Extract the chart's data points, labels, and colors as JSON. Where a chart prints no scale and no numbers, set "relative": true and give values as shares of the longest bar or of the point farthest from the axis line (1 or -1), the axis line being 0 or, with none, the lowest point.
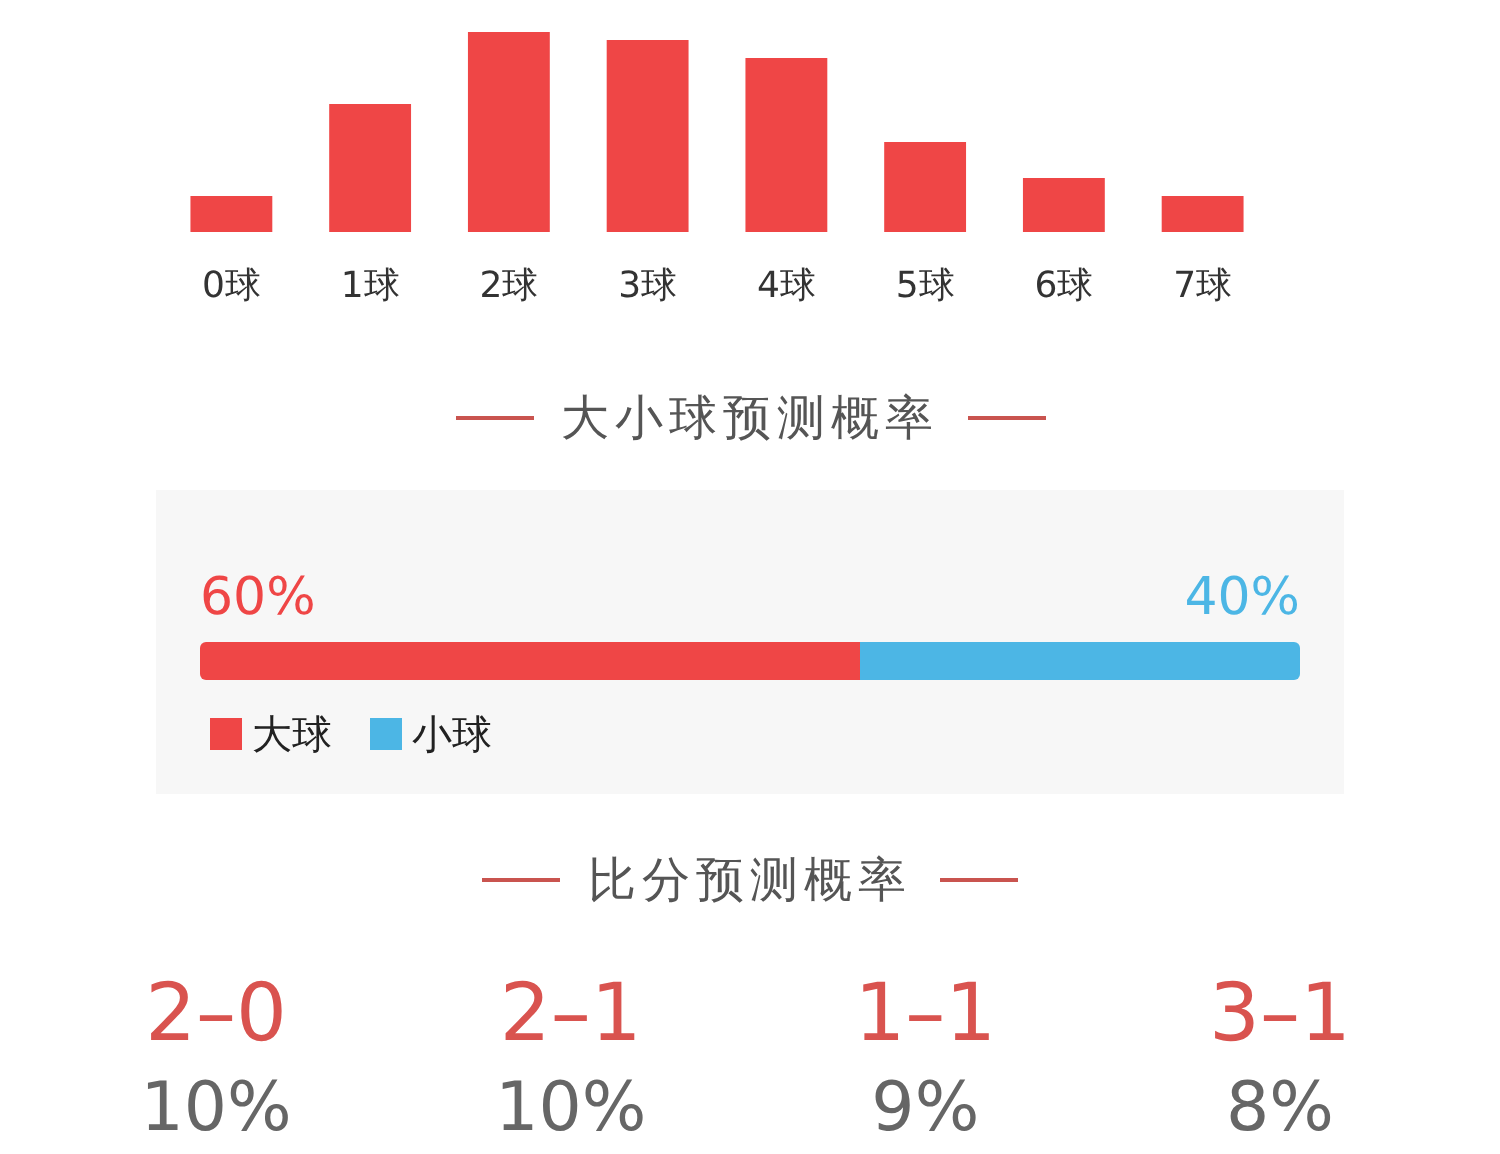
{
  "chart_data": [
    {
      "type": "bar",
      "categories": [
        "0球",
        "1球",
        "2球",
        "3球",
        "4球",
        "5球",
        "6球",
        "7球"
      ],
      "values": [
        0.18,
        0.64,
        1,
        0.96,
        0.87,
        0.45,
        0.27,
        0.18
      ],
      "color": "#ef4646",
      "relative": true
    },
    {
      "type": "bar",
      "title": "大小球预测概率",
      "orientation": "horizontal",
      "stacked": true,
      "categories": [
        null
      ],
      "series": [
        {
          "name": "大球",
          "color": "#ef4646",
          "values": [
            60
          ],
          "value_labels": [
            "60%"
          ]
        },
        {
          "name": "小球",
          "color": "#4cb6e5",
          "values": [
            40
          ],
          "value_labels": [
            "40%"
          ]
        }
      ],
      "legend": "bottom left",
      "tick_labels": false
    },
    {
      "type": "other",
      "title": "比分预测概率",
      "categories": [
        "2–0",
        "2–1",
        "1–1",
        "3–1"
      ],
      "values": [
        10,
        10,
        9,
        8
      ],
      "value_labels": [
        "10%",
        "10%",
        "9%",
        "8%"
      ]
    }
  ]
}
